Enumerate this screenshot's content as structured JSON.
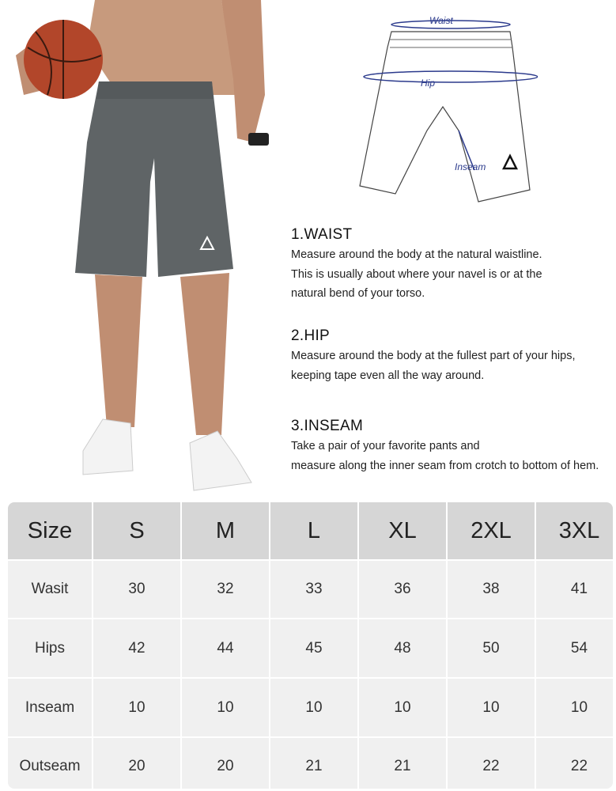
{
  "diagram": {
    "waist_label": "Waist",
    "hip_label": "Hip",
    "inseam_label": "Inseam"
  },
  "sections": [
    {
      "title": "1.WAIST",
      "lines": [
        "Measure around the body at the natural waistline.",
        "This is usually about where your navel is or at the",
        "natural bend of your torso."
      ]
    },
    {
      "title": "2.HIP",
      "lines": [
        "Measure around the body at the fullest part of your hips,",
        "keeping tape even all the way around."
      ]
    },
    {
      "title": "3.INSEAM",
      "lines": [
        "Take a pair of your favorite pants and",
        "measure along the inner seam from crotch to bottom of hem."
      ]
    }
  ],
  "size_table": {
    "headers": [
      "Size",
      "S",
      "M",
      "L",
      "XL",
      "2XL",
      "3XL"
    ],
    "rows": [
      [
        "Wasit",
        "30",
        "32",
        "33",
        "36",
        "38",
        "41"
      ],
      [
        "Hips",
        "42",
        "44",
        "45",
        "48",
        "50",
        "54"
      ],
      [
        "Inseam",
        "10",
        "10",
        "10",
        "10",
        "10",
        "10"
      ],
      [
        "Outseam",
        "20",
        "20",
        "21",
        "21",
        "22",
        "22"
      ]
    ]
  },
  "colors": {
    "shorts": "#5f6466",
    "header_bg": "#d6d6d6",
    "cell_bg": "#f0f0f0",
    "measure_line": "#2b3a8c"
  }
}
